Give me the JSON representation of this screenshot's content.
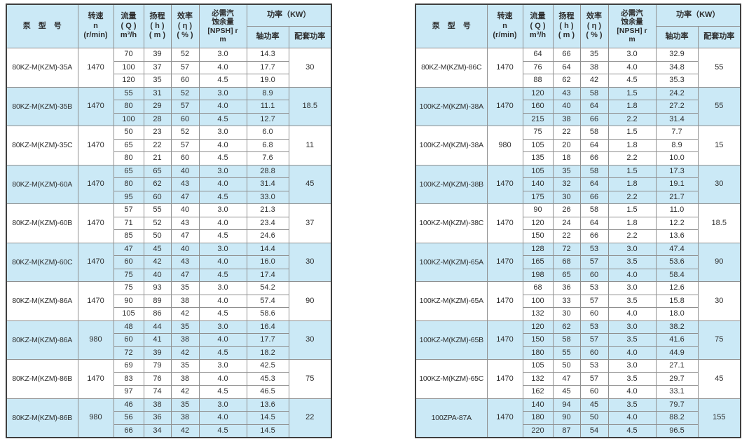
{
  "colors": {
    "header_bg": "#cbe9f6",
    "row_shaded_bg": "#cbe9f6",
    "row_plain_bg": "#ffffff",
    "outer_border": "#3f3f3f",
    "inner_border": "#8f8f8f",
    "text": "#2e2e2e"
  },
  "header": {
    "model": "泵　型　号",
    "speed": "转速\nn\n(r/min)",
    "flow": "流量\n( Q )\nm³/h",
    "head": "扬程\n( h )\n( m )",
    "efficiency": "效率\n( η )\n( % )",
    "npsh": "必需汽\n蚀余量\n[NPSH] r\nm",
    "power": "功率（KW）",
    "shaft": "轴功率",
    "matched": "配套功率"
  },
  "tables": [
    {
      "name": "pump-spec-table-left",
      "groups": [
        {
          "model": "80KZ-M(KZM)-35A",
          "speed": "1470",
          "shaded": false,
          "matched_power": "30",
          "rows": [
            [
              "70",
              "39",
              "52",
              "3.0",
              "14.3"
            ],
            [
              "100",
              "37",
              "57",
              "4.0",
              "17.7"
            ],
            [
              "120",
              "35",
              "60",
              "4.5",
              "19.0"
            ]
          ]
        },
        {
          "model": "80KZ-M(KZM)-35B",
          "speed": "1470",
          "shaded": true,
          "matched_power": "18.5",
          "rows": [
            [
              "55",
              "31",
              "52",
              "3.0",
              "8.9"
            ],
            [
              "80",
              "29",
              "57",
              "4.0",
              "11.1"
            ],
            [
              "100",
              "28",
              "60",
              "4.5",
              "12.7"
            ]
          ]
        },
        {
          "model": "80KZ-M(KZM)-35C",
          "speed": "1470",
          "shaded": false,
          "matched_power": "11",
          "rows": [
            [
              "50",
              "23",
              "52",
              "3.0",
              "6.0"
            ],
            [
              "65",
              "22",
              "57",
              "4.0",
              "6.8"
            ],
            [
              "80",
              "21",
              "60",
              "4.5",
              "7.6"
            ]
          ]
        },
        {
          "model": "80KZ-M(KZM)-60A",
          "speed": "1470",
          "shaded": true,
          "matched_power": "45",
          "rows": [
            [
              "65",
              "65",
              "40",
              "3.0",
              "28.8"
            ],
            [
              "80",
              "62",
              "43",
              "4.0",
              "31.4"
            ],
            [
              "95",
              "60",
              "47",
              "4.5",
              "33.0"
            ]
          ]
        },
        {
          "model": "80KZ-M(KZM)-60B",
          "speed": "1470",
          "shaded": false,
          "matched_power": "37",
          "rows": [
            [
              "57",
              "55",
              "40",
              "3.0",
              "21.3"
            ],
            [
              "71",
              "52",
              "43",
              "4.0",
              "23.4"
            ],
            [
              "85",
              "50",
              "47",
              "4.5",
              "24.6"
            ]
          ]
        },
        {
          "model": "80KZ-M(KZM)-60C",
          "speed": "1470",
          "shaded": true,
          "matched_power": "30",
          "rows": [
            [
              "47",
              "45",
              "40",
              "3.0",
              "14.4"
            ],
            [
              "60",
              "42",
              "43",
              "4.0",
              "16.0"
            ],
            [
              "75",
              "40",
              "47",
              "4.5",
              "17.4"
            ]
          ]
        },
        {
          "model": "80KZ-M(KZM)-86A",
          "speed": "1470",
          "shaded": false,
          "matched_power": "90",
          "rows": [
            [
              "75",
              "93",
              "35",
              "3.0",
              "54.2"
            ],
            [
              "90",
              "89",
              "38",
              "4.0",
              "57.4"
            ],
            [
              "105",
              "86",
              "42",
              "4.5",
              "58.6"
            ]
          ]
        },
        {
          "model": "80KZ-M(KZM)-86A",
          "speed": "980",
          "shaded": true,
          "matched_power": "30",
          "rows": [
            [
              "48",
              "44",
              "35",
              "3.0",
              "16.4"
            ],
            [
              "60",
              "41",
              "38",
              "4.0",
              "17.7"
            ],
            [
              "72",
              "39",
              "42",
              "4.5",
              "18.2"
            ]
          ]
        },
        {
          "model": "80KZ-M(KZM)-86B",
          "speed": "1470",
          "shaded": false,
          "matched_power": "75",
          "rows": [
            [
              "69",
              "79",
              "35",
              "3.0",
              "42.5"
            ],
            [
              "83",
              "76",
              "38",
              "4.0",
              "45.3"
            ],
            [
              "97",
              "74",
              "42",
              "4.5",
              "46.5"
            ]
          ]
        },
        {
          "model": "80KZ-M(KZM)-86B",
          "speed": "980",
          "shaded": true,
          "matched_power": "22",
          "rows": [
            [
              "46",
              "38",
              "35",
              "3.0",
              "13.6"
            ],
            [
              "56",
              "36",
              "38",
              "4.0",
              "14.5"
            ],
            [
              "66",
              "34",
              "42",
              "4.5",
              "14.5"
            ]
          ]
        }
      ]
    },
    {
      "name": "pump-spec-table-right",
      "groups": [
        {
          "model": "80KZ-M(KZM)-86C",
          "speed": "1470",
          "shaded": false,
          "matched_power": "55",
          "rows": [
            [
              "64",
              "66",
              "35",
              "3.0",
              "32.9"
            ],
            [
              "76",
              "64",
              "38",
              "4.0",
              "34.8"
            ],
            [
              "88",
              "62",
              "42",
              "4.5",
              "35.3"
            ]
          ]
        },
        {
          "model": "100KZ-M(KZM)-38A",
          "speed": "1470",
          "shaded": true,
          "matched_power": "55",
          "rows": [
            [
              "120",
              "43",
              "58",
              "1.5",
              "24.2"
            ],
            [
              "160",
              "40",
              "64",
              "1.8",
              "27.2"
            ],
            [
              "215",
              "38",
              "66",
              "2.2",
              "31.4"
            ]
          ]
        },
        {
          "model": "100KZ-M(KZM)-38A",
          "speed": "980",
          "shaded": false,
          "matched_power": "15",
          "rows": [
            [
              "75",
              "22",
              "58",
              "1.5",
              "7.7"
            ],
            [
              "105",
              "20",
              "64",
              "1.8",
              "8.9"
            ],
            [
              "135",
              "18",
              "66",
              "2.2",
              "10.0"
            ]
          ]
        },
        {
          "model": "100KZ-M(KZM)-38B",
          "speed": "1470",
          "shaded": true,
          "matched_power": "30",
          "rows": [
            [
              "105",
              "35",
              "58",
              "1.5",
              "17.3"
            ],
            [
              "140",
              "32",
              "64",
              "1.8",
              "19.1"
            ],
            [
              "175",
              "30",
              "66",
              "2.2",
              "21.7"
            ]
          ]
        },
        {
          "model": "100KZ-M(KZM)-38C",
          "speed": "1470",
          "shaded": false,
          "matched_power": "18.5",
          "rows": [
            [
              "90",
              "26",
              "58",
              "1.5",
              "11.0"
            ],
            [
              "120",
              "24",
              "64",
              "1.8",
              "12.2"
            ],
            [
              "150",
              "22",
              "66",
              "2.2",
              "13.6"
            ]
          ]
        },
        {
          "model": "100KZ-M(KZM)-65A",
          "speed": "1470",
          "shaded": true,
          "matched_power": "90",
          "rows": [
            [
              "128",
              "72",
              "53",
              "3.0",
              "47.4"
            ],
            [
              "165",
              "68",
              "57",
              "3.5",
              "53.6"
            ],
            [
              "198",
              "65",
              "60",
              "4.0",
              "58.4"
            ]
          ]
        },
        {
          "model": "100KZ-M(KZM)-65A",
          "speed": "1470",
          "shaded": false,
          "matched_power": "30",
          "rows": [
            [
              "68",
              "36",
              "53",
              "3.0",
              "12.6"
            ],
            [
              "100",
              "33",
              "57",
              "3.5",
              "15.8"
            ],
            [
              "132",
              "30",
              "60",
              "4.0",
              "18.0"
            ]
          ]
        },
        {
          "model": "100KZ-M(KZM)-65B",
          "speed": "1470",
          "shaded": true,
          "matched_power": "75",
          "rows": [
            [
              "120",
              "62",
              "53",
              "3.0",
              "38.2"
            ],
            [
              "150",
              "58",
              "57",
              "3.5",
              "41.6"
            ],
            [
              "180",
              "55",
              "60",
              "4.0",
              "44.9"
            ]
          ]
        },
        {
          "model": "100KZ-M(KZM)-65C",
          "speed": "1470",
          "shaded": false,
          "matched_power": "45",
          "rows": [
            [
              "105",
              "50",
              "53",
              "3.0",
              "27.1"
            ],
            [
              "132",
              "47",
              "57",
              "3.5",
              "29.7"
            ],
            [
              "162",
              "45",
              "60",
              "4.0",
              "33.1"
            ]
          ]
        },
        {
          "model": "100ZPA-87A",
          "speed": "1470",
          "shaded": true,
          "matched_power": "155",
          "rows": [
            [
              "140",
              "94",
              "45",
              "3.5",
              "79.7"
            ],
            [
              "180",
              "90",
              "50",
              "4.0",
              "88.2"
            ],
            [
              "220",
              "87",
              "54",
              "4.5",
              "96.5"
            ]
          ]
        }
      ]
    }
  ]
}
